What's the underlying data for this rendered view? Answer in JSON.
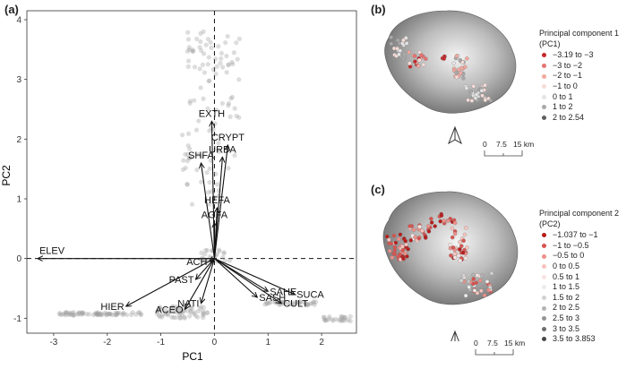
{
  "panels": {
    "a": "(a)",
    "b": "(b)",
    "c": "(c)"
  },
  "chart_data": [
    {
      "type": "scatter",
      "title": "",
      "xlabel": "PC1",
      "ylabel": "PC2",
      "xlim": [
        -3.5,
        2.65
      ],
      "ylim": [
        -1.25,
        4.15
      ],
      "xticks": [
        -3,
        -2,
        -1,
        0,
        1,
        2
      ],
      "yticks": [
        -1,
        0,
        1,
        2,
        3,
        4
      ],
      "reference_lines": {
        "x": 0,
        "y": 0,
        "style": "dashed"
      },
      "loadings": [
        {
          "name": "ELEV",
          "x": -3.3,
          "y": 0.0
        },
        {
          "name": "EXTH",
          "x": -0.05,
          "y": 2.3
        },
        {
          "name": "CRYPT",
          "x": 0.25,
          "y": 1.9
        },
        {
          "name": "URBA",
          "x": 0.15,
          "y": 1.7
        },
        {
          "name": "SHFA",
          "x": -0.25,
          "y": 1.6
        },
        {
          "name": "HEFA",
          "x": 0.05,
          "y": 0.85
        },
        {
          "name": "AGFA",
          "x": 0.0,
          "y": 0.6
        },
        {
          "name": "ACH",
          "x": -0.1,
          "y": -0.05
        },
        {
          "name": "PAST",
          "x": -0.35,
          "y": -0.35
        },
        {
          "name": "HIER",
          "x": -1.65,
          "y": -0.8
        },
        {
          "name": "NATI",
          "x": -0.25,
          "y": -0.75
        },
        {
          "name": "ACEO",
          "x": -0.55,
          "y": -0.85
        },
        {
          "name": "SAHE",
          "x": 1.0,
          "y": -0.55
        },
        {
          "name": "SUCA",
          "x": 1.5,
          "y": -0.6
        },
        {
          "name": "SASH",
          "x": 0.8,
          "y": -0.65
        },
        {
          "name": "CULT",
          "x": 1.25,
          "y": -0.75
        }
      ]
    }
  ],
  "maps": {
    "b": {
      "legend_title": "Principal component 1 (PC1)",
      "legend": [
        {
          "label": "−3.19 to −3",
          "color": "#c62828"
        },
        {
          "label": "−3 to −2",
          "color": "#e57373"
        },
        {
          "label": "−2 to −1",
          "color": "#f2a9a0"
        },
        {
          "label": "−1 to 0",
          "color": "#f6dcd8"
        },
        {
          "label": "0 to 1",
          "color": "#e4e4e4"
        },
        {
          "label": "1 to 2",
          "color": "#a9a9a9"
        },
        {
          "label": "2 to 2.54",
          "color": "#5e5e5e"
        }
      ],
      "scale": {
        "ticks": [
          "0",
          "7.5",
          "15 km"
        ]
      }
    },
    "c": {
      "legend_title": "Principal component 2 (PC2)",
      "legend": [
        {
          "label": "−1.037 to −1",
          "color": "#b71c1c"
        },
        {
          "label": "−1 to −0.5",
          "color": "#d9534f"
        },
        {
          "label": "−0.5 to 0",
          "color": "#ee9089"
        },
        {
          "label": "0 to 0.5",
          "color": "#f6c4bd"
        },
        {
          "label": "0.5 to 1",
          "color": "#f7e4e1"
        },
        {
          "label": "1 to 1.5",
          "color": "#ececec"
        },
        {
          "label": "1.5 to 2",
          "color": "#d2d2d2"
        },
        {
          "label": "2 to 2.5",
          "color": "#b4b4b4"
        },
        {
          "label": "2.5 to 3",
          "color": "#949494"
        },
        {
          "label": "3 to 3.5",
          "color": "#6f6f6f"
        },
        {
          "label": "3.5 to 3.853",
          "color": "#474747"
        }
      ],
      "scale": {
        "ticks": [
          "0",
          "7.5",
          "15 km"
        ]
      }
    }
  }
}
